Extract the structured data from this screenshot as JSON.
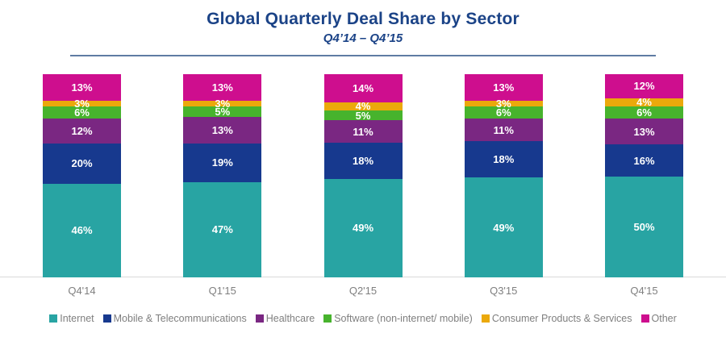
{
  "chart_data": {
    "type": "bar",
    "stacked": true,
    "title": "Global Quarterly Deal Share by Sector",
    "subtitle": "Q4’14 – Q4’15",
    "categories": [
      "Q4'14",
      "Q1'15",
      "Q2'15",
      "Q3'15",
      "Q4'15"
    ],
    "series": [
      {
        "name": "Internet",
        "color": "#28a4a3",
        "values": [
          46,
          47,
          49,
          49,
          50
        ]
      },
      {
        "name": "Mobile & Telecommunications",
        "color": "#17398e",
        "values": [
          20,
          19,
          18,
          18,
          16
        ]
      },
      {
        "name": "Healthcare",
        "color": "#7a2782",
        "values": [
          12,
          13,
          11,
          11,
          13
        ]
      },
      {
        "name": "Software (non-internet/ mobile)",
        "color": "#47b32d",
        "values": [
          6,
          5,
          5,
          6,
          6
        ]
      },
      {
        "name": "Consumer Products & Services",
        "color": "#eba90b",
        "values": [
          3,
          3,
          4,
          3,
          4
        ]
      },
      {
        "name": "Other",
        "color": "#ce0e8e",
        "values": [
          13,
          13,
          14,
          13,
          12
        ]
      }
    ],
    "value_suffix": "%",
    "ylim": [
      0,
      100
    ],
    "grid": false,
    "legend_position": "bottom",
    "title_color": "#1b4387",
    "axis_label_color": "#7f7f7f"
  }
}
